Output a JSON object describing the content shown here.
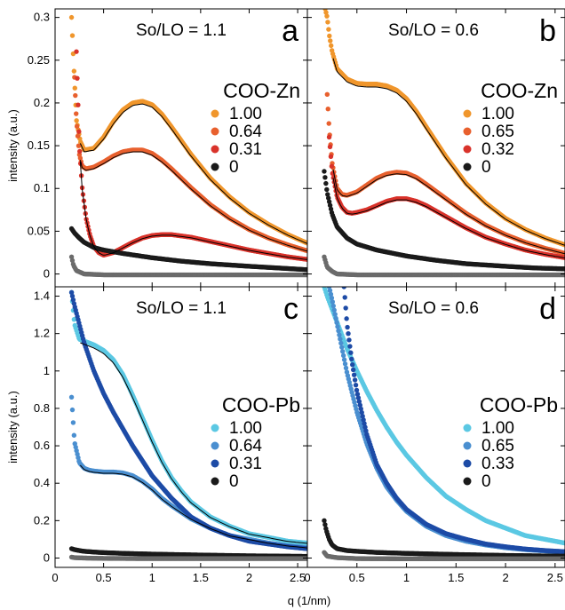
{
  "figure": {
    "ylabel": "intensity (a.u.)",
    "xlabel": "q (1/nm)",
    "x_ticks": [
      "0",
      "0.5",
      "1",
      "1.5",
      "2",
      "2.5"
    ]
  },
  "chart_data": [
    {
      "type": "scatter",
      "panel": "a",
      "condition": "So/LO = 1.1",
      "legend_title": "COO-Zn",
      "legend_position": "right",
      "xlim": [
        0,
        2.6
      ],
      "ylim": [
        -0.015,
        0.31
      ],
      "y_ticks": [
        {
          "v": 0,
          "label": "0"
        },
        {
          "v": 0.05,
          "label": "0.05"
        },
        {
          "v": 0.1,
          "label": "0.1"
        },
        {
          "v": 0.15,
          "label": "0.15"
        },
        {
          "v": 0.2,
          "label": "0.2"
        },
        {
          "v": 0.25,
          "label": "0.25"
        },
        {
          "v": 0.3,
          "label": "0.3"
        }
      ],
      "series": [
        {
          "name": "1.00",
          "color": "#f0962c",
          "fit": true,
          "x": [
            0.17,
            0.19,
            0.22,
            0.26,
            0.3,
            0.4,
            0.5,
            0.6,
            0.7,
            0.8,
            0.9,
            1.0,
            1.1,
            1.2,
            1.4,
            1.6,
            1.8,
            2.0,
            2.2,
            2.4,
            2.6
          ],
          "y": [
            0.3,
            0.25,
            0.18,
            0.155,
            0.145,
            0.147,
            0.16,
            0.178,
            0.192,
            0.2,
            0.202,
            0.198,
            0.187,
            0.172,
            0.14,
            0.112,
            0.09,
            0.072,
            0.058,
            0.046,
            0.036
          ]
        },
        {
          "name": "0.64",
          "color": "#e8602e",
          "fit": true,
          "x": [
            0.2,
            0.22,
            0.25,
            0.28,
            0.32,
            0.4,
            0.5,
            0.6,
            0.7,
            0.8,
            0.9,
            1.0,
            1.1,
            1.2,
            1.4,
            1.6,
            1.8,
            2.0,
            2.2,
            2.4,
            2.6
          ],
          "y": [
            0.23,
            0.18,
            0.14,
            0.126,
            0.123,
            0.125,
            0.131,
            0.138,
            0.143,
            0.145,
            0.145,
            0.141,
            0.133,
            0.123,
            0.101,
            0.081,
            0.065,
            0.052,
            0.042,
            0.034,
            0.027
          ]
        },
        {
          "name": "0.31",
          "color": "#d9332b",
          "fit": true,
          "x": [
            0.22,
            0.25,
            0.28,
            0.32,
            0.36,
            0.4,
            0.45,
            0.5,
            0.6,
            0.7,
            0.8,
            0.9,
            1.0,
            1.1,
            1.2,
            1.4,
            1.6,
            1.8,
            2.0,
            2.2,
            2.4,
            2.6
          ],
          "y": [
            0.26,
            0.15,
            0.1,
            0.065,
            0.045,
            0.032,
            0.025,
            0.022,
            0.025,
            0.031,
            0.037,
            0.042,
            0.045,
            0.046,
            0.046,
            0.043,
            0.038,
            0.033,
            0.028,
            0.024,
            0.02,
            0.017
          ]
        },
        {
          "name": "0",
          "color": "#1a1a1a",
          "fit": false,
          "x": [
            0.17,
            0.2,
            0.25,
            0.3,
            0.4,
            0.5,
            0.7,
            1.0,
            1.3,
            1.6,
            2.0,
            2.3,
            2.6
          ],
          "y": [
            0.053,
            0.048,
            0.042,
            0.037,
            0.031,
            0.028,
            0.024,
            0.019,
            0.015,
            0.012,
            0.009,
            0.007,
            0.005
          ]
        },
        {
          "name": "",
          "color": "#6b6b6b",
          "fit": false,
          "x": [
            0.17,
            0.19,
            0.22,
            0.3,
            0.5,
            1.0,
            1.5,
            2.0,
            2.6
          ],
          "y": [
            0.02,
            0.01,
            0.004,
            0.0,
            -0.001,
            -0.001,
            -0.001,
            -0.001,
            -0.001
          ]
        }
      ]
    },
    {
      "type": "scatter",
      "panel": "b",
      "condition": "So/LO = 0.6",
      "legend_title": "COO-Zn",
      "legend_position": "right",
      "xlim": [
        0,
        2.6
      ],
      "ylim": [
        -0.015,
        0.31
      ],
      "y_ticks": [],
      "series": [
        {
          "name": "1.00",
          "color": "#f0962c",
          "fit": true,
          "x": [
            0.18,
            0.2,
            0.22,
            0.25,
            0.3,
            0.4,
            0.5,
            0.6,
            0.7,
            0.8,
            0.9,
            1.0,
            1.1,
            1.2,
            1.4,
            1.6,
            1.8,
            2.0,
            2.2,
            2.4,
            2.6
          ],
          "y": [
            0.31,
            0.3,
            0.28,
            0.26,
            0.24,
            0.228,
            0.223,
            0.222,
            0.222,
            0.22,
            0.215,
            0.205,
            0.19,
            0.172,
            0.137,
            0.106,
            0.083,
            0.065,
            0.052,
            0.042,
            0.034
          ]
        },
        {
          "name": "0.65",
          "color": "#e8602e",
          "fit": true,
          "x": [
            0.2,
            0.22,
            0.25,
            0.3,
            0.35,
            0.4,
            0.5,
            0.6,
            0.7,
            0.8,
            0.9,
            1.0,
            1.1,
            1.2,
            1.4,
            1.6,
            1.8,
            2.0,
            2.2,
            2.4,
            2.6
          ],
          "y": [
            0.21,
            0.17,
            0.13,
            0.1,
            0.093,
            0.092,
            0.096,
            0.104,
            0.112,
            0.117,
            0.119,
            0.118,
            0.113,
            0.105,
            0.088,
            0.071,
            0.057,
            0.046,
            0.037,
            0.03,
            0.024
          ]
        },
        {
          "name": "0.32",
          "color": "#d9332b",
          "fit": true,
          "x": [
            0.22,
            0.25,
            0.3,
            0.35,
            0.4,
            0.45,
            0.5,
            0.6,
            0.7,
            0.8,
            0.9,
            1.0,
            1.1,
            1.2,
            1.4,
            1.6,
            1.8,
            2.0,
            2.2,
            2.4,
            2.6
          ],
          "y": [
            0.16,
            0.12,
            0.09,
            0.078,
            0.072,
            0.071,
            0.072,
            0.075,
            0.08,
            0.085,
            0.088,
            0.088,
            0.085,
            0.08,
            0.067,
            0.054,
            0.043,
            0.035,
            0.028,
            0.023,
            0.019
          ]
        },
        {
          "name": "0",
          "color": "#1a1a1a",
          "fit": false,
          "x": [
            0.17,
            0.2,
            0.25,
            0.3,
            0.4,
            0.5,
            0.7,
            1.0,
            1.3,
            1.6,
            2.0,
            2.3,
            2.6
          ],
          "y": [
            0.12,
            0.095,
            0.07,
            0.055,
            0.042,
            0.035,
            0.028,
            0.021,
            0.016,
            0.012,
            0.009,
            0.007,
            0.006
          ]
        },
        {
          "name": "",
          "color": "#6b6b6b",
          "fit": false,
          "x": [
            0.17,
            0.2,
            0.25,
            0.3,
            0.5,
            1.0,
            1.5,
            2.0,
            2.6
          ],
          "y": [
            0.02,
            0.008,
            0.003,
            0.0,
            -0.001,
            -0.001,
            -0.001,
            -0.001,
            -0.001
          ]
        }
      ]
    },
    {
      "type": "scatter",
      "panel": "c",
      "condition": "So/LO = 1.1",
      "legend_title": "COO-Pb",
      "legend_position": "right",
      "xlim": [
        0,
        2.6
      ],
      "ylim": [
        -0.05,
        1.45
      ],
      "y_ticks": [
        {
          "v": 0,
          "label": "0"
        },
        {
          "v": 0.2,
          "label": "0.2"
        },
        {
          "v": 0.4,
          "label": "0.4"
        },
        {
          "v": 0.6,
          "label": "0.6"
        },
        {
          "v": 0.8,
          "label": "0.8"
        },
        {
          "v": 1.0,
          "label": "1"
        },
        {
          "v": 1.2,
          "label": "1.2"
        },
        {
          "v": 1.4,
          "label": "1.4"
        }
      ],
      "series": [
        {
          "name": "1.00",
          "color": "#5bc8e3",
          "fit": true,
          "x": [
            0.17,
            0.2,
            0.25,
            0.3,
            0.4,
            0.5,
            0.6,
            0.7,
            0.8,
            0.9,
            1.0,
            1.1,
            1.2,
            1.3,
            1.4,
            1.6,
            1.8,
            2.0,
            2.2,
            2.4,
            2.6
          ],
          "y": [
            1.42,
            1.25,
            1.17,
            1.16,
            1.14,
            1.11,
            1.06,
            0.98,
            0.87,
            0.75,
            0.63,
            0.52,
            0.43,
            0.36,
            0.3,
            0.22,
            0.17,
            0.13,
            0.11,
            0.09,
            0.08
          ]
        },
        {
          "name": "0.64",
          "color": "#4a8fd0",
          "fit": true,
          "x": [
            0.17,
            0.2,
            0.25,
            0.3,
            0.35,
            0.4,
            0.5,
            0.6,
            0.7,
            0.8,
            0.9,
            1.0,
            1.1,
            1.2,
            1.4,
            1.6,
            1.8,
            2.0,
            2.2,
            2.4,
            2.6
          ],
          "y": [
            0.86,
            0.62,
            0.51,
            0.48,
            0.47,
            0.465,
            0.46,
            0.46,
            0.455,
            0.44,
            0.41,
            0.37,
            0.32,
            0.28,
            0.21,
            0.16,
            0.12,
            0.1,
            0.08,
            0.065,
            0.055
          ]
        },
        {
          "name": "0.31",
          "color": "#1d4ba6",
          "fit": false,
          "x": [
            0.17,
            0.2,
            0.25,
            0.3,
            0.4,
            0.5,
            0.6,
            0.7,
            0.8,
            0.9,
            1.0,
            1.2,
            1.4,
            1.6,
            1.8,
            2.0,
            2.2,
            2.4,
            2.6
          ],
          "y": [
            1.42,
            1.35,
            1.25,
            1.15,
            1.0,
            0.88,
            0.78,
            0.69,
            0.6,
            0.52,
            0.44,
            0.32,
            0.22,
            0.16,
            0.12,
            0.09,
            0.075,
            0.06,
            0.05
          ]
        },
        {
          "name": "0",
          "color": "#1a1a1a",
          "fit": false,
          "x": [
            0.17,
            0.2,
            0.25,
            0.3,
            0.4,
            0.5,
            0.7,
            1.0,
            1.5,
            2.0,
            2.6
          ],
          "y": [
            0.05,
            0.045,
            0.04,
            0.036,
            0.032,
            0.029,
            0.025,
            0.021,
            0.016,
            0.012,
            0.009
          ]
        },
        {
          "name": "",
          "color": "#6b6b6b",
          "fit": false,
          "x": [
            0.17,
            0.2,
            0.3,
            0.5,
            1.0,
            1.5,
            2.0,
            2.6
          ],
          "y": [
            0.005,
            0.002,
            0.0,
            -0.002,
            -0.003,
            -0.003,
            -0.003,
            -0.003
          ]
        }
      ]
    },
    {
      "type": "scatter",
      "panel": "d",
      "condition": "So/LO = 0.6",
      "legend_title": "COO-Pb",
      "legend_position": "right",
      "xlim": [
        0,
        2.6
      ],
      "ylim": [
        -0.05,
        1.45
      ],
      "y_ticks": [],
      "series": [
        {
          "name": "1.00",
          "color": "#5bc8e3",
          "fit": false,
          "x": [
            0.17,
            0.2,
            0.25,
            0.3,
            0.4,
            0.5,
            0.6,
            0.7,
            0.8,
            0.9,
            1.0,
            1.2,
            1.4,
            1.6,
            1.8,
            2.0,
            2.2,
            2.4,
            2.6
          ],
          "y": [
            1.45,
            1.4,
            1.33,
            1.26,
            1.12,
            1.0,
            0.89,
            0.79,
            0.7,
            0.62,
            0.55,
            0.43,
            0.33,
            0.26,
            0.2,
            0.16,
            0.12,
            0.1,
            0.08
          ]
        },
        {
          "name": "0.65",
          "color": "#4a8fd0",
          "fit": false,
          "x": [
            0.22,
            0.25,
            0.3,
            0.35,
            0.4,
            0.5,
            0.6,
            0.7,
            0.8,
            0.9,
            1.0,
            1.2,
            1.4,
            1.6,
            1.8,
            2.0,
            2.2,
            2.4,
            2.6
          ],
          "y": [
            1.45,
            1.38,
            1.25,
            1.12,
            0.99,
            0.78,
            0.61,
            0.48,
            0.38,
            0.31,
            0.25,
            0.17,
            0.12,
            0.09,
            0.07,
            0.055,
            0.045,
            0.038,
            0.032
          ]
        },
        {
          "name": "0.33",
          "color": "#1d4ba6",
          "fit": false,
          "x": [
            0.37,
            0.4,
            0.45,
            0.5,
            0.6,
            0.7,
            0.8,
            0.9,
            1.0,
            1.2,
            1.4,
            1.6,
            1.8,
            2.0,
            2.2,
            2.4,
            2.6
          ],
          "y": [
            1.45,
            1.25,
            1.05,
            0.89,
            0.66,
            0.5,
            0.4,
            0.32,
            0.26,
            0.18,
            0.13,
            0.1,
            0.075,
            0.06,
            0.048,
            0.04,
            0.034
          ]
        },
        {
          "name": "0",
          "color": "#1a1a1a",
          "fit": false,
          "x": [
            0.17,
            0.19,
            0.22,
            0.25,
            0.3,
            0.4,
            0.5,
            0.7,
            1.0,
            1.5,
            2.0,
            2.6
          ],
          "y": [
            0.2,
            0.15,
            0.1,
            0.07,
            0.05,
            0.04,
            0.036,
            0.03,
            0.025,
            0.019,
            0.014,
            0.01
          ]
        },
        {
          "name": "",
          "color": "#6b6b6b",
          "fit": false,
          "x": [
            0.17,
            0.2,
            0.3,
            0.5,
            1.0,
            1.5,
            2.0,
            2.6
          ],
          "y": [
            0.03,
            0.01,
            0.002,
            -0.003,
            -0.004,
            -0.004,
            -0.004,
            -0.004
          ]
        }
      ]
    }
  ]
}
